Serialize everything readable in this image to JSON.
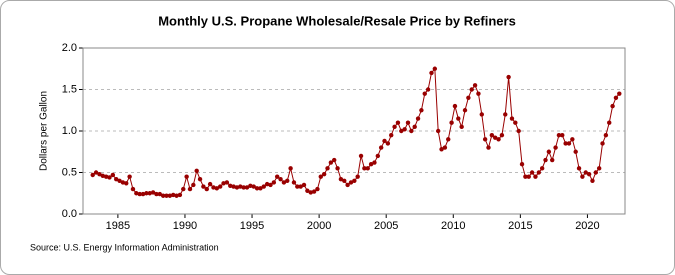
{
  "chart_data": {
    "type": "line",
    "title": "Monthly U.S. Propane Wholesale/Resale Price by Refiners",
    "y_label": "Dollars per Gallon",
    "source": "Source: U.S. Energy Information Administration",
    "xlim": [
      1982.4,
      2022.8
    ],
    "xticks": [
      1985,
      1990,
      1995,
      2000,
      2005,
      2010,
      2015,
      2020
    ],
    "ylim": [
      0,
      2
    ],
    "yticks": [
      {
        "value": 0,
        "label": "0.0"
      },
      {
        "value": 0.5,
        "label": "0.5"
      },
      {
        "value": 1,
        "label": "1.0"
      },
      {
        "value": 1.5,
        "label": "1.5"
      },
      {
        "value": 2,
        "label": "2.0"
      }
    ],
    "grid": true,
    "series": [
      {
        "color": "#990000",
        "x": [
          1983.125,
          1983.375,
          1983.625,
          1983.875,
          1984.125,
          1984.375,
          1984.625,
          1984.875,
          1985.125,
          1985.375,
          1985.625,
          1985.875,
          1986.125,
          1986.375,
          1986.625,
          1986.875,
          1987.125,
          1987.375,
          1987.625,
          1987.875,
          1988.125,
          1988.375,
          1988.625,
          1988.875,
          1989.125,
          1989.375,
          1989.625,
          1989.875,
          1990.125,
          1990.375,
          1990.625,
          1990.875,
          1991.125,
          1991.375,
          1991.625,
          1991.875,
          1992.125,
          1992.375,
          1992.625,
          1992.875,
          1993.125,
          1993.375,
          1993.625,
          1993.875,
          1994.125,
          1994.375,
          1994.625,
          1994.875,
          1995.125,
          1995.375,
          1995.625,
          1995.875,
          1996.125,
          1996.375,
          1996.625,
          1996.875,
          1997.125,
          1997.375,
          1997.625,
          1997.875,
          1998.125,
          1998.375,
          1998.625,
          1998.875,
          1999.125,
          1999.375,
          1999.625,
          1999.875,
          2000.125,
          2000.375,
          2000.625,
          2000.875,
          2001.125,
          2001.375,
          2001.625,
          2001.875,
          2002.125,
          2002.375,
          2002.625,
          2002.875,
          2003.125,
          2003.375,
          2003.625,
          2003.875,
          2004.125,
          2004.375,
          2004.625,
          2004.875,
          2005.125,
          2005.375,
          2005.625,
          2005.875,
          2006.125,
          2006.375,
          2006.625,
          2006.875,
          2007.125,
          2007.375,
          2007.625,
          2007.875,
          2008.125,
          2008.375,
          2008.625,
          2008.875,
          2009.125,
          2009.375,
          2009.625,
          2009.875,
          2010.125,
          2010.375,
          2010.625,
          2010.875,
          2011.125,
          2011.375,
          2011.625,
          2011.875,
          2012.125,
          2012.375,
          2012.625,
          2012.875,
          2013.125,
          2013.375,
          2013.625,
          2013.875,
          2014.125,
          2014.375,
          2014.625,
          2014.875,
          2015.125,
          2015.375,
          2015.625,
          2015.875,
          2016.125,
          2016.375,
          2016.625,
          2016.875,
          2017.125,
          2017.375,
          2017.625,
          2017.875,
          2018.125,
          2018.375,
          2018.625,
          2018.875,
          2019.125,
          2019.375,
          2019.625,
          2019.875,
          2020.125,
          2020.375,
          2020.625,
          2020.875,
          2021.125,
          2021.375,
          2021.625,
          2021.875,
          2022.125,
          2022.375
        ],
        "values": [
          0.47,
          0.5,
          0.48,
          0.46,
          0.45,
          0.44,
          0.47,
          0.42,
          0.4,
          0.38,
          0.37,
          0.45,
          0.3,
          0.25,
          0.24,
          0.24,
          0.25,
          0.25,
          0.26,
          0.24,
          0.24,
          0.22,
          0.22,
          0.22,
          0.23,
          0.22,
          0.23,
          0.3,
          0.45,
          0.3,
          0.35,
          0.52,
          0.42,
          0.33,
          0.3,
          0.36,
          0.32,
          0.31,
          0.33,
          0.37,
          0.38,
          0.34,
          0.33,
          0.32,
          0.33,
          0.32,
          0.32,
          0.34,
          0.33,
          0.31,
          0.31,
          0.33,
          0.36,
          0.35,
          0.38,
          0.45,
          0.42,
          0.38,
          0.4,
          0.55,
          0.38,
          0.33,
          0.33,
          0.35,
          0.28,
          0.26,
          0.27,
          0.3,
          0.45,
          0.48,
          0.55,
          0.62,
          0.65,
          0.55,
          0.42,
          0.4,
          0.35,
          0.38,
          0.4,
          0.45,
          0.7,
          0.55,
          0.55,
          0.6,
          0.62,
          0.7,
          0.8,
          0.88,
          0.85,
          0.95,
          1.05,
          1.1,
          1.0,
          1.02,
          1.1,
          1.0,
          1.05,
          1.15,
          1.25,
          1.45,
          1.5,
          1.7,
          1.75,
          1.0,
          0.78,
          0.8,
          0.9,
          1.1,
          1.3,
          1.15,
          1.05,
          1.25,
          1.4,
          1.5,
          1.55,
          1.45,
          1.2,
          0.9,
          0.8,
          0.95,
          0.92,
          0.9,
          0.95,
          1.2,
          1.65,
          1.15,
          1.1,
          1.0,
          0.6,
          0.45,
          0.45,
          0.5,
          0.45,
          0.5,
          0.55,
          0.65,
          0.75,
          0.65,
          0.8,
          0.95,
          0.95,
          0.85,
          0.85,
          0.9,
          0.75,
          0.55,
          0.45,
          0.5,
          0.48,
          0.4,
          0.5,
          0.55,
          0.85,
          0.95,
          1.1,
          1.3,
          1.4,
          1.45
        ]
      }
    ]
  }
}
